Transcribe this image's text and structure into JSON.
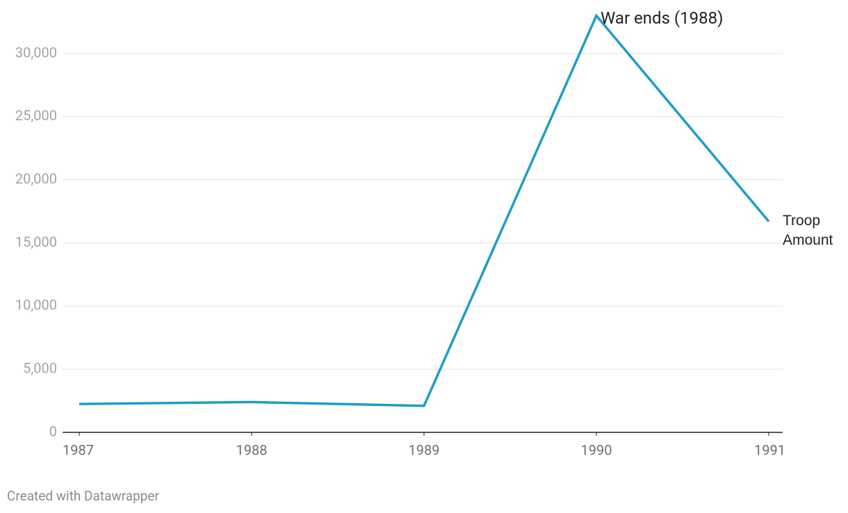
{
  "chart_data": {
    "type": "line",
    "x": [
      1987,
      1988,
      1989,
      1990,
      1991
    ],
    "series": [
      {
        "name": "Troop Amount",
        "color": "#1d9dc8",
        "values": [
          2250,
          2400,
          2100,
          33000,
          16700
        ]
      }
    ],
    "xlim": [
      1987,
      1991
    ],
    "xticks": [
      1987,
      1988,
      1989,
      1990,
      1991
    ],
    "ylim": [
      0,
      33000
    ],
    "yticks": [
      0,
      {
        "value": 5000,
        "label": "5,000"
      },
      {
        "value": 10000,
        "label": "10,000"
      },
      {
        "value": 15000,
        "label": "15,000"
      },
      {
        "value": 20000,
        "label": "20,000"
      },
      {
        "value": 25000,
        "label": "25,000"
      },
      {
        "value": 30000,
        "label": "30,000"
      }
    ],
    "grid": true,
    "annotations": [
      {
        "text": "War ends (1988)",
        "x": 1990,
        "y": 33000
      }
    ],
    "credit": "Created with Datawrapper"
  }
}
